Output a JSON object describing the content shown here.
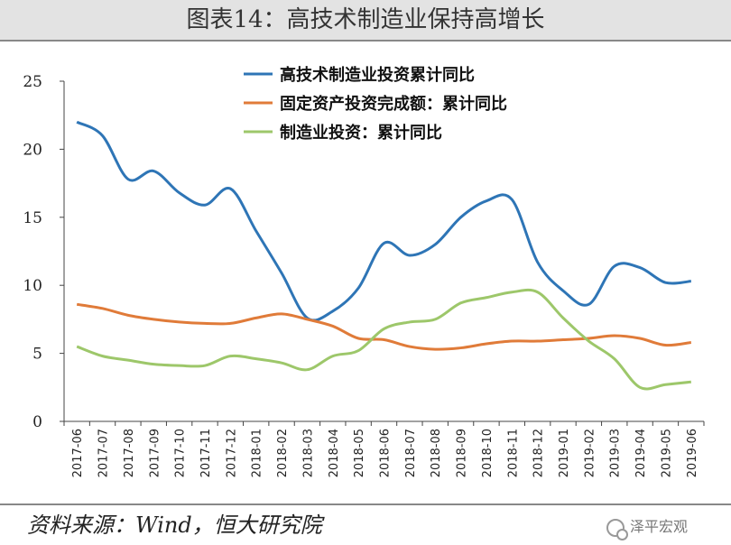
{
  "title": "图表14：高技术制造业保持高增长",
  "source": "资料来源：Wind，恒大研究院",
  "watermark": "泽平宏观",
  "chart_data": {
    "type": "line",
    "categories": [
      "2017-06",
      "2017-07",
      "2017-08",
      "2017-09",
      "2017-10",
      "2017-11",
      "2017-12",
      "2018-01",
      "2018-02",
      "2018-03",
      "2018-04",
      "2018-05",
      "2018-06",
      "2018-07",
      "2018-08",
      "2018-09",
      "2018-10",
      "2018-11",
      "2018-12",
      "2019-01",
      "2019-02",
      "2019-03",
      "2019-04",
      "2019-05",
      "2019-06"
    ],
    "ylim": [
      0,
      25
    ],
    "yticks": [
      0,
      5,
      10,
      15,
      20,
      25
    ],
    "legend_position": "top-right",
    "series": [
      {
        "name": "高技术制造业投资累计同比",
        "color": "#2e75b6",
        "values": [
          22.0,
          21.0,
          17.8,
          18.4,
          16.8,
          15.9,
          17.1,
          14.0,
          10.9,
          7.6,
          8.1,
          9.8,
          13.1,
          12.2,
          13.0,
          15.0,
          16.2,
          16.3,
          11.7,
          9.6,
          8.6,
          11.4,
          11.3,
          10.2,
          10.3
        ]
      },
      {
        "name": "固定资产投资完成额：累计同比",
        "color": "#e07b39",
        "values": [
          8.6,
          8.3,
          7.8,
          7.5,
          7.3,
          7.2,
          7.2,
          7.6,
          7.9,
          7.5,
          7.0,
          6.1,
          6.0,
          5.5,
          5.3,
          5.4,
          5.7,
          5.9,
          5.9,
          6.0,
          6.1,
          6.3,
          6.1,
          5.6,
          5.8
        ]
      },
      {
        "name": "制造业投资：累计同比",
        "color": "#9dc76a",
        "values": [
          5.5,
          4.8,
          4.5,
          4.2,
          4.1,
          4.1,
          4.8,
          4.6,
          4.3,
          3.8,
          4.8,
          5.2,
          6.8,
          7.3,
          7.5,
          8.7,
          9.1,
          9.5,
          9.5,
          7.6,
          5.9,
          4.6,
          2.5,
          2.7,
          2.9
        ]
      }
    ]
  }
}
